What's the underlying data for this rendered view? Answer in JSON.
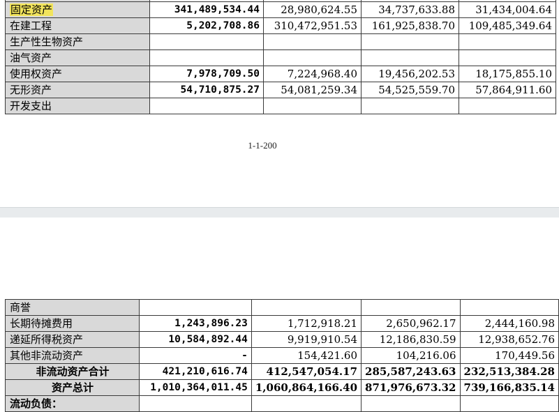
{
  "top_table": {
    "rows": [
      {
        "label": "",
        "v1": "",
        "v2": "",
        "v3": "",
        "v4": ""
      },
      {
        "label": "固定资产",
        "v1": "341,489,534.44",
        "v2": "28,980,624.55",
        "v3": "34,737,633.88",
        "v4": "31,434,004.64"
      },
      {
        "label": "在建工程",
        "v1": "5,202,708.86",
        "v2": "310,472,951.53",
        "v3": "161,925,838.70",
        "v4": "109,485,349.64"
      },
      {
        "label": "生产性生物资产",
        "v1": "",
        "v2": "",
        "v3": "",
        "v4": ""
      },
      {
        "label": "油气资产",
        "v1": "",
        "v2": "",
        "v3": "",
        "v4": ""
      },
      {
        "label": "使用权资产",
        "v1": "7,978,709.50",
        "v2": "7,224,968.40",
        "v3": "19,456,202.53",
        "v4": "18,175,855.10"
      },
      {
        "label": "无形资产",
        "v1": "54,710,875.27",
        "v2": "54,081,259.34",
        "v3": "54,525,559.70",
        "v4": "57,864,911.60"
      },
      {
        "label": "开发支出",
        "v1": "",
        "v2": "",
        "v3": "",
        "v4": ""
      }
    ]
  },
  "page_number": "1-1-200",
  "bottom_table": {
    "rows": [
      {
        "label": "商誉",
        "v1": "",
        "v2": "",
        "v3": "",
        "v4": ""
      },
      {
        "label": "长期待摊费用",
        "v1": "1,243,896.23",
        "v2": "1,712,918.21",
        "v3": "2,650,962.17",
        "v4": "2,444,160.98"
      },
      {
        "label": "递延所得税资产",
        "v1": "10,584,892.44",
        "v2": "9,919,910.54",
        "v3": "12,186,830.59",
        "v4": "12,938,652.76"
      },
      {
        "label": "其他非流动资产",
        "v1": "-",
        "v2": "154,421.60",
        "v3": "104,216.06",
        "v4": "170,449.56"
      },
      {
        "label": "非流动资产合计",
        "v1": "421,210,616.74",
        "v2": "412,547,054.17",
        "v3": "285,587,243.63",
        "v4": "232,513,384.28"
      },
      {
        "label": "资产总计",
        "v1": "1,010,364,011.45",
        "v2": "1,060,864,166.40",
        "v3": "871,976,673.32",
        "v4": "739,166,835.14"
      },
      {
        "label": "流动负债：",
        "v1": "",
        "v2": "",
        "v3": "",
        "v4": ""
      }
    ]
  },
  "colors": {
    "label_bg": "#d9d9d9",
    "highlight": "#f2e45c",
    "page_gap": "#e8ebed"
  }
}
